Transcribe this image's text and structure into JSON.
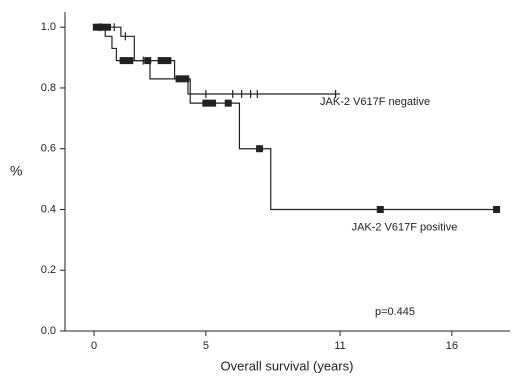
{
  "chart_data": {
    "type": "km",
    "y_label": "%",
    "x_label": "Overall survival (years)",
    "annotation": "p=0.445",
    "xlim": [
      -1.3,
      18.6
    ],
    "ylim": [
      0,
      1.05
    ],
    "xticks": [
      0,
      5,
      11,
      16
    ],
    "yticks": [
      {
        "value": 0,
        "label": "0.0"
      },
      {
        "value": 0.2,
        "label": "0.2"
      },
      {
        "value": 0.4,
        "label": "0.4"
      },
      {
        "value": 0.6,
        "label": "0.6"
      },
      {
        "value": 0.8,
        "label": "0.8"
      },
      {
        "value": 1,
        "label": "1.0"
      }
    ],
    "series": [
      {
        "name": "JAK-2 V617F negative",
        "color": "#222222",
        "marker": "plus",
        "x": [
          0,
          1.2,
          1.8,
          2.5,
          4.2,
          11
        ],
        "values": [
          1.0,
          0.97,
          0.89,
          0.83,
          0.78,
          0.78
        ],
        "censor_x": [
          0.3,
          0.9,
          1.4,
          2.2,
          5.0,
          6.2,
          6.6,
          7.0,
          7.3,
          10.8
        ],
        "censor_values": [
          1.0,
          1.0,
          0.97,
          0.89,
          0.78,
          0.78,
          0.78,
          0.78,
          0.78,
          0.78
        ]
      },
      {
        "name": "JAK-2 V617F positive",
        "color": "#222222",
        "marker": "square",
        "x": [
          0,
          0.5,
          0.8,
          1.0,
          3.6,
          4.3,
          6.5,
          7.9,
          18
        ],
        "values": [
          1.0,
          0.97,
          0.93,
          0.89,
          0.83,
          0.75,
          0.6,
          0.4,
          0.4
        ],
        "censor_x": [
          0.1,
          0.3,
          0.6,
          1.3,
          1.6,
          2.4,
          3.0,
          3.3,
          3.8,
          4.1,
          5.0,
          5.3,
          6.0,
          7.4,
          12.8,
          18
        ],
        "censor_values": [
          1,
          1,
          1,
          0.89,
          0.89,
          0.89,
          0.89,
          0.89,
          0.83,
          0.83,
          0.75,
          0.75,
          0.75,
          0.6,
          0.4,
          0.4
        ]
      }
    ]
  }
}
